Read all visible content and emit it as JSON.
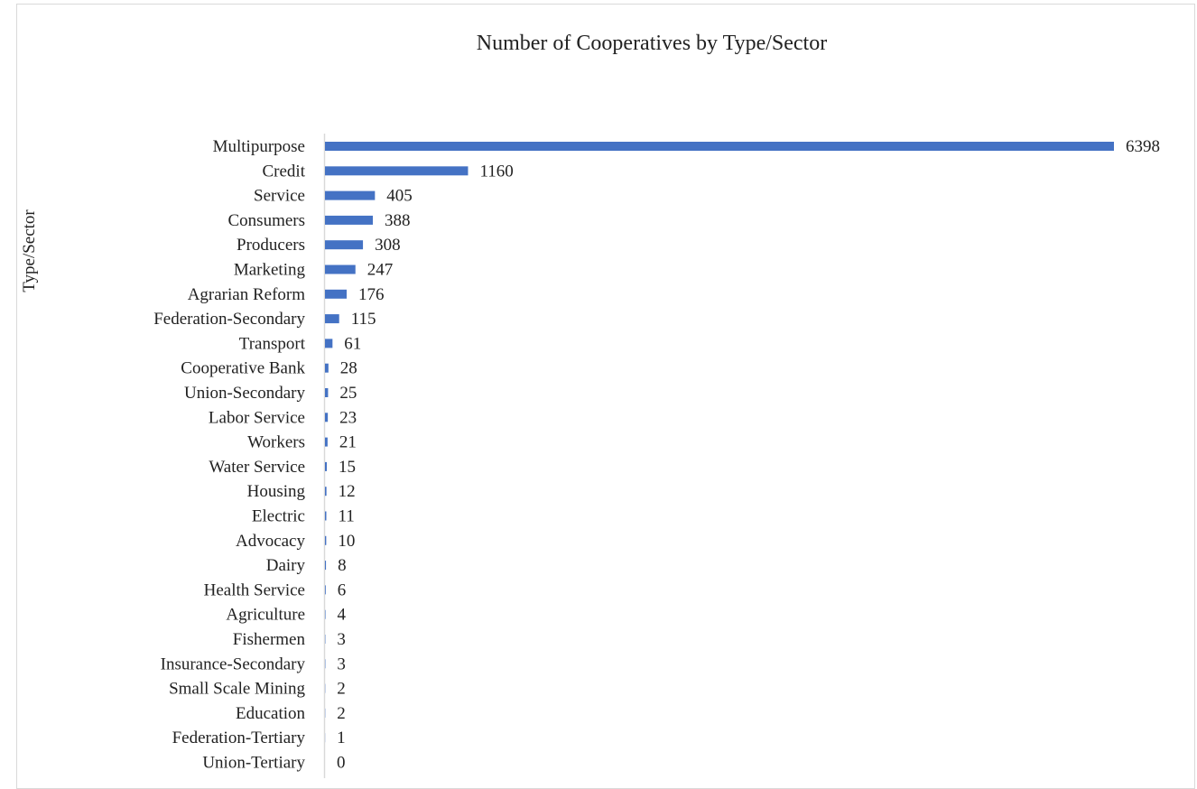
{
  "chart_data": {
    "type": "bar",
    "orientation": "horizontal",
    "title": "Number of Cooperatives by Type/Sector",
    "xlabel": "",
    "ylabel": "Type/Sector",
    "categories": [
      "Multipurpose",
      "Credit",
      "Service",
      "Consumers",
      "Producers",
      "Marketing",
      "Agrarian Reform",
      "Federation-Secondary",
      "Transport",
      "Cooperative Bank",
      "Union-Secondary",
      "Labor Service",
      "Workers",
      "Water Service",
      "Housing",
      "Electric",
      "Advocacy",
      "Dairy",
      "Health Service",
      "Agriculture",
      "Fishermen",
      "Insurance-Secondary",
      "Small Scale Mining",
      "Education",
      "Federation-Tertiary",
      "Union-Tertiary"
    ],
    "values": [
      6398,
      1160,
      405,
      388,
      308,
      247,
      176,
      115,
      61,
      28,
      25,
      23,
      21,
      15,
      12,
      11,
      10,
      8,
      6,
      4,
      3,
      3,
      2,
      2,
      1,
      0
    ],
    "bar_color": "#4472C4",
    "axis_line_color": "#d9d9d9",
    "data_labels": true,
    "grid": false,
    "legend": false
  }
}
